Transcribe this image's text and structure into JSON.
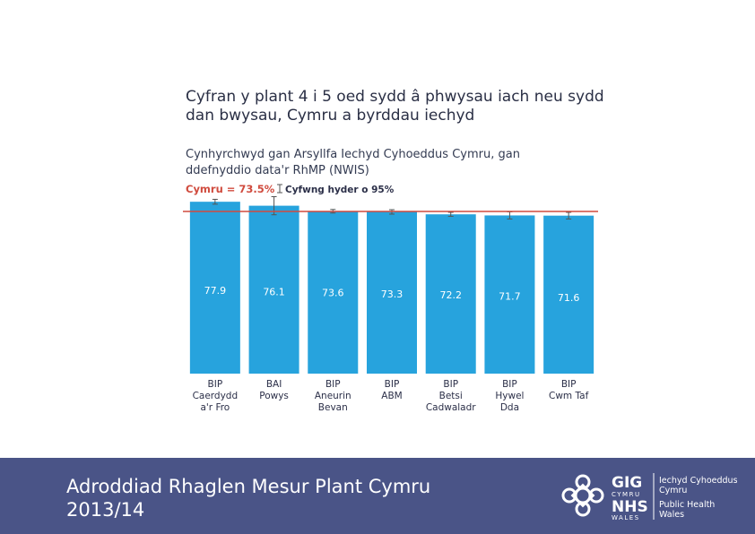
{
  "header": {
    "title": "Cyfran y plant 4 i 5 oed sydd â phwysau iach neu sydd dan bwysau, Cymru a byrddau iechyd",
    "subtitle": "Cynhyrchwyd gan Arsyllfa Iechyd Cyhoeddus Cymru, gan ddefnyddio data'r RhMP (NWIS)"
  },
  "chart_data": {
    "type": "bar",
    "categories": [
      [
        "BIP",
        "Caerdydd",
        "a'r Fro"
      ],
      [
        "BAI",
        "Powys"
      ],
      [
        "BIP",
        "Aneurin",
        "Bevan"
      ],
      [
        "BIP",
        "ABM"
      ],
      [
        "BIP",
        "Betsi",
        "Cadwaladr"
      ],
      [
        "BIP",
        "Hywel",
        "Dda"
      ],
      [
        "BIP",
        "Cwm Taf"
      ]
    ],
    "values": [
      77.9,
      76.1,
      73.6,
      73.3,
      72.2,
      71.7,
      71.6
    ],
    "ci_low": [
      76.8,
      72.0,
      72.8,
      72.3,
      71.3,
      70.1,
      70.1
    ],
    "ci_high": [
      79.0,
      80.2,
      74.4,
      74.3,
      73.1,
      73.3,
      73.1
    ],
    "reference_line": {
      "label": "Cymru = 73.5%",
      "value": 73.5
    },
    "legend": {
      "ci_label": "Cyfwng hyder o 95%"
    },
    "ylim": [
      0,
      80
    ],
    "xlabel": "",
    "ylabel": "",
    "grid": false,
    "colors": {
      "bar": "#27a3dd",
      "reference": "#d04b3e",
      "label": "#ffffff",
      "category": "#2b2f48",
      "error": "#555555"
    }
  },
  "footer": {
    "report_title_line1": "Adroddiad Rhaglen Mesur Plant Cymru",
    "report_title_line2": "2013/14"
  },
  "logo": {
    "gig": "GIG",
    "cymru": "CYMRU",
    "nhs": "NHS",
    "wales": "WALES",
    "org_line1": "Iechyd Cyhoeddus",
    "org_line2": "Cymru",
    "org_line3": "Public Health",
    "org_line4": "Wales"
  }
}
